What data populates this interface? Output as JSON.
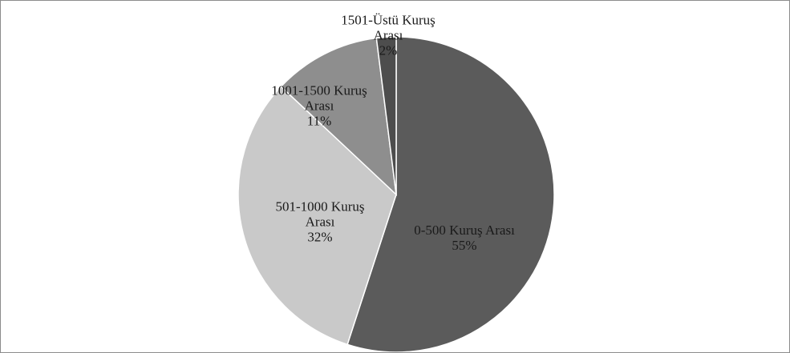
{
  "chart_data": {
    "type": "pie",
    "categories": [
      "0-500 Kuruş Arası",
      "501-1000 Kuruş Arası",
      "1001-1500 Kuruş Arası",
      "1501-Üstü Kuruş Arası"
    ],
    "values": [
      55,
      32,
      11,
      2
    ],
    "value_labels": [
      "55%",
      "32%",
      "11%",
      "2%"
    ],
    "colors": [
      "#5b5b5b",
      "#c9c9c9",
      "#8e8e8e",
      "#4d4d4d"
    ]
  }
}
